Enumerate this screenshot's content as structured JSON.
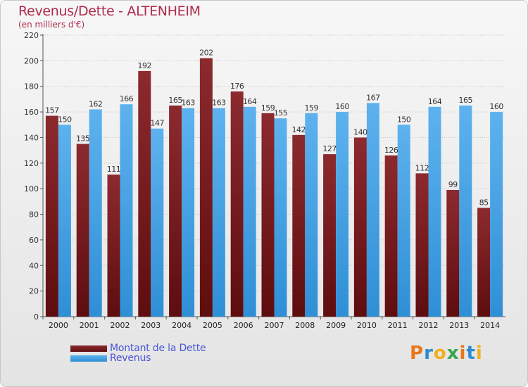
{
  "chart_data": {
    "type": "bar",
    "title": "Revenus/Dette - ALTENHEIM",
    "subtitle": "(en milliers d'€)",
    "xlabel": "",
    "ylabel": "",
    "ylim": [
      0,
      220
    ],
    "yticks": [
      0,
      20,
      40,
      60,
      80,
      100,
      120,
      140,
      160,
      180,
      200,
      220
    ],
    "categories": [
      "2000",
      "2001",
      "2002",
      "2003",
      "2004",
      "2005",
      "2006",
      "2007",
      "2008",
      "2009",
      "2010",
      "2011",
      "2012",
      "2013",
      "2014"
    ],
    "series": [
      {
        "name": "Montant de la Dette",
        "color": "#7a1f22",
        "values": [
          157,
          135,
          111,
          192,
          165,
          202,
          176,
          159,
          142,
          127,
          140,
          126,
          112,
          99,
          85
        ]
      },
      {
        "name": "Revenus",
        "color": "#4aa3e3",
        "values": [
          150,
          162,
          166,
          147,
          163,
          163,
          164,
          155,
          159,
          160,
          167,
          150,
          164,
          165,
          160
        ]
      }
    ],
    "grid": true,
    "legend_position": "bottom-left"
  },
  "logo": {
    "text": "Proxiti",
    "colors": [
      "#e8771a",
      "#2e8bd0",
      "#f2b01c",
      "#3aa54a",
      "#e8771a",
      "#2e8bd0",
      "#f2b01c"
    ]
  }
}
